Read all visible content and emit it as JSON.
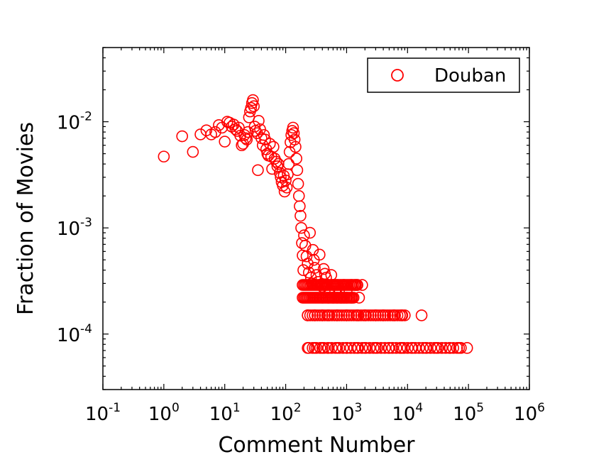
{
  "chart_data": {
    "type": "scatter",
    "xscale": "log",
    "yscale": "log",
    "xlim": [
      0.1,
      1000000
    ],
    "ylim": [
      3e-05,
      0.05
    ],
    "xlabel": "Comment Number",
    "ylabel": "Fraction of Movies",
    "legend": {
      "position": "top-right",
      "entries": [
        "Douban"
      ]
    },
    "grid": false,
    "x_ticks": [
      {
        "value": 0.1,
        "base": "10",
        "exp": "-1"
      },
      {
        "value": 1,
        "base": "10",
        "exp": "0"
      },
      {
        "value": 10,
        "base": "10",
        "exp": "1"
      },
      {
        "value": 100,
        "base": "10",
        "exp": "2"
      },
      {
        "value": 1000,
        "base": "10",
        "exp": "3"
      },
      {
        "value": 10000,
        "base": "10",
        "exp": "4"
      },
      {
        "value": 100000,
        "base": "10",
        "exp": "5"
      },
      {
        "value": 1000000,
        "base": "10",
        "exp": "6"
      }
    ],
    "y_ticks": [
      {
        "value": 0.0001,
        "base": "10",
        "exp": "-4"
      },
      {
        "value": 0.001,
        "base": "10",
        "exp": "-3"
      },
      {
        "value": 0.01,
        "base": "10",
        "exp": "-2"
      }
    ],
    "series": [
      {
        "name": "Douban",
        "color": "#ff0000",
        "marker": "open-circle",
        "points": [
          [
            1,
            0.0047
          ],
          [
            2,
            0.0073
          ],
          [
            3,
            0.0052
          ],
          [
            4,
            0.0076
          ],
          [
            5,
            0.0083
          ],
          [
            6,
            0.0076
          ],
          [
            7,
            0.008
          ],
          [
            8,
            0.0093
          ],
          [
            9,
            0.0088
          ],
          [
            10,
            0.0065
          ],
          [
            11,
            0.01
          ],
          [
            12,
            0.0098
          ],
          [
            13,
            0.009
          ],
          [
            14,
            0.0094
          ],
          [
            15,
            0.0085
          ],
          [
            16,
            0.0082
          ],
          [
            17,
            0.0088
          ],
          [
            18,
            0.0074
          ],
          [
            19,
            0.006
          ],
          [
            20,
            0.0062
          ],
          [
            21,
            0.0075
          ],
          [
            22,
            0.007
          ],
          [
            23,
            0.0068
          ],
          [
            24,
            0.008
          ],
          [
            25,
            0.011
          ],
          [
            26,
            0.0125
          ],
          [
            27,
            0.0135
          ],
          [
            28,
            0.015
          ],
          [
            29,
            0.016
          ],
          [
            30,
            0.014
          ],
          [
            31,
            0.009
          ],
          [
            32,
            0.0082
          ],
          [
            34,
            0.0078
          ],
          [
            35,
            0.0035
          ],
          [
            36,
            0.0102
          ],
          [
            38,
            0.0085
          ],
          [
            40,
            0.007
          ],
          [
            42,
            0.006
          ],
          [
            44,
            0.0075
          ],
          [
            46,
            0.0068
          ],
          [
            48,
            0.0055
          ],
          [
            50,
            0.005
          ],
          [
            52,
            0.0048
          ],
          [
            55,
            0.0062
          ],
          [
            58,
            0.0047
          ],
          [
            60,
            0.0036
          ],
          [
            63,
            0.0058
          ],
          [
            66,
            0.0045
          ],
          [
            70,
            0.0042
          ],
          [
            73,
            0.0038
          ],
          [
            76,
            0.004
          ],
          [
            80,
            0.0033
          ],
          [
            83,
            0.003
          ],
          [
            86,
            0.0027
          ],
          [
            90,
            0.0025
          ],
          [
            93,
            0.0031
          ],
          [
            96,
            0.0022
          ],
          [
            100,
            0.0028
          ],
          [
            104,
            0.0024
          ],
          [
            108,
            0.0032
          ],
          [
            112,
            0.004
          ],
          [
            116,
            0.0052
          ],
          [
            120,
            0.0064
          ],
          [
            124,
            0.0075
          ],
          [
            128,
            0.0082
          ],
          [
            132,
            0.0088
          ],
          [
            136,
            0.0078
          ],
          [
            140,
            0.0068
          ],
          [
            145,
            0.0058
          ],
          [
            150,
            0.0045
          ],
          [
            155,
            0.0035
          ],
          [
            160,
            0.0026
          ],
          [
            165,
            0.002
          ],
          [
            170,
            0.0016
          ],
          [
            175,
            0.0013
          ],
          [
            180,
            0.001
          ],
          [
            185,
            0.00072
          ],
          [
            190,
            0.00055
          ],
          [
            195,
            0.0004
          ],
          [
            200,
            0.00085
          ],
          [
            210,
            0.00068
          ],
          [
            220,
            0.00054
          ],
          [
            230,
            0.00046
          ],
          [
            240,
            0.00038
          ],
          [
            250,
            0.0009
          ],
          [
            260,
            0.00034
          ],
          [
            270,
            0.0003
          ],
          [
            280,
            0.00062
          ],
          [
            290,
            0.0005
          ],
          [
            300,
            0.00042
          ],
          [
            320,
            0.00036
          ],
          [
            340,
            0.00031
          ],
          [
            360,
            0.00056
          ],
          [
            380,
            0.00029
          ],
          [
            400,
            0.00028
          ],
          [
            420,
            0.00041
          ],
          [
            440,
            0.00037
          ],
          [
            460,
            0.00034
          ],
          [
            480,
            0.00029
          ],
          [
            520,
            0.00025
          ],
          [
            560,
            0.00036
          ],
          [
            600,
            0.00029
          ],
          [
            650,
            0.00025
          ],
          [
            700,
            0.00029
          ],
          [
            750,
            0.00025
          ],
          [
            820,
            0.00022
          ],
          [
            900,
            0.00029
          ],
          [
            1000,
            0.00025
          ],
          [
            1200,
            0.00029
          ],
          [
            1400,
            0.00029
          ],
          [
            1600,
            0.00022
          ],
          [
            400,
            0.00022
          ],
          [
            500,
            0.00022
          ],
          [
            600,
            0.00022
          ],
          [
            700,
            0.00022
          ],
          [
            800,
            0.00022
          ],
          [
            900,
            0.00022
          ],
          [
            1000,
            0.00022
          ],
          [
            1200,
            0.00022
          ],
          [
            1500,
            0.00029
          ],
          [
            1800,
            0.00029
          ],
          [
            230,
            0.00015
          ],
          [
            300,
            0.00015
          ],
          [
            400,
            0.00015
          ],
          [
            500,
            0.00015
          ],
          [
            700,
            0.00015
          ],
          [
            1000,
            0.00015
          ],
          [
            1500,
            0.00015
          ],
          [
            2000,
            0.00015
          ],
          [
            3000,
            0.00015
          ],
          [
            4000,
            0.00015
          ],
          [
            6000,
            0.00015
          ],
          [
            8000,
            0.00015
          ],
          [
            17000,
            0.00015
          ],
          [
            230,
            7.4e-05
          ],
          [
            300,
            7.4e-05
          ],
          [
            400,
            7.4e-05
          ],
          [
            500,
            7.4e-05
          ],
          [
            700,
            7.4e-05
          ],
          [
            1000,
            7.4e-05
          ],
          [
            1500,
            7.4e-05
          ],
          [
            2000,
            7.4e-05
          ],
          [
            3000,
            7.4e-05
          ],
          [
            5000,
            7.4e-05
          ],
          [
            8000,
            7.4e-05
          ],
          [
            12000,
            7.4e-05
          ],
          [
            20000,
            7.4e-05
          ],
          [
            30000,
            7.4e-05
          ],
          [
            50000,
            7.4e-05
          ],
          [
            70000,
            7.4e-05
          ],
          [
            95000,
            7.4e-05
          ]
        ],
        "bands": [
          {
            "y": 0.00015,
            "x_from": 230,
            "x_to": 9000
          },
          {
            "y": 7.4e-05,
            "x_from": 240,
            "x_to": 75000
          },
          {
            "y": 0.00022,
            "x_from": 190,
            "x_to": 1300
          },
          {
            "y": 0.00029,
            "x_from": 190,
            "x_to": 1500
          }
        ]
      }
    ]
  }
}
